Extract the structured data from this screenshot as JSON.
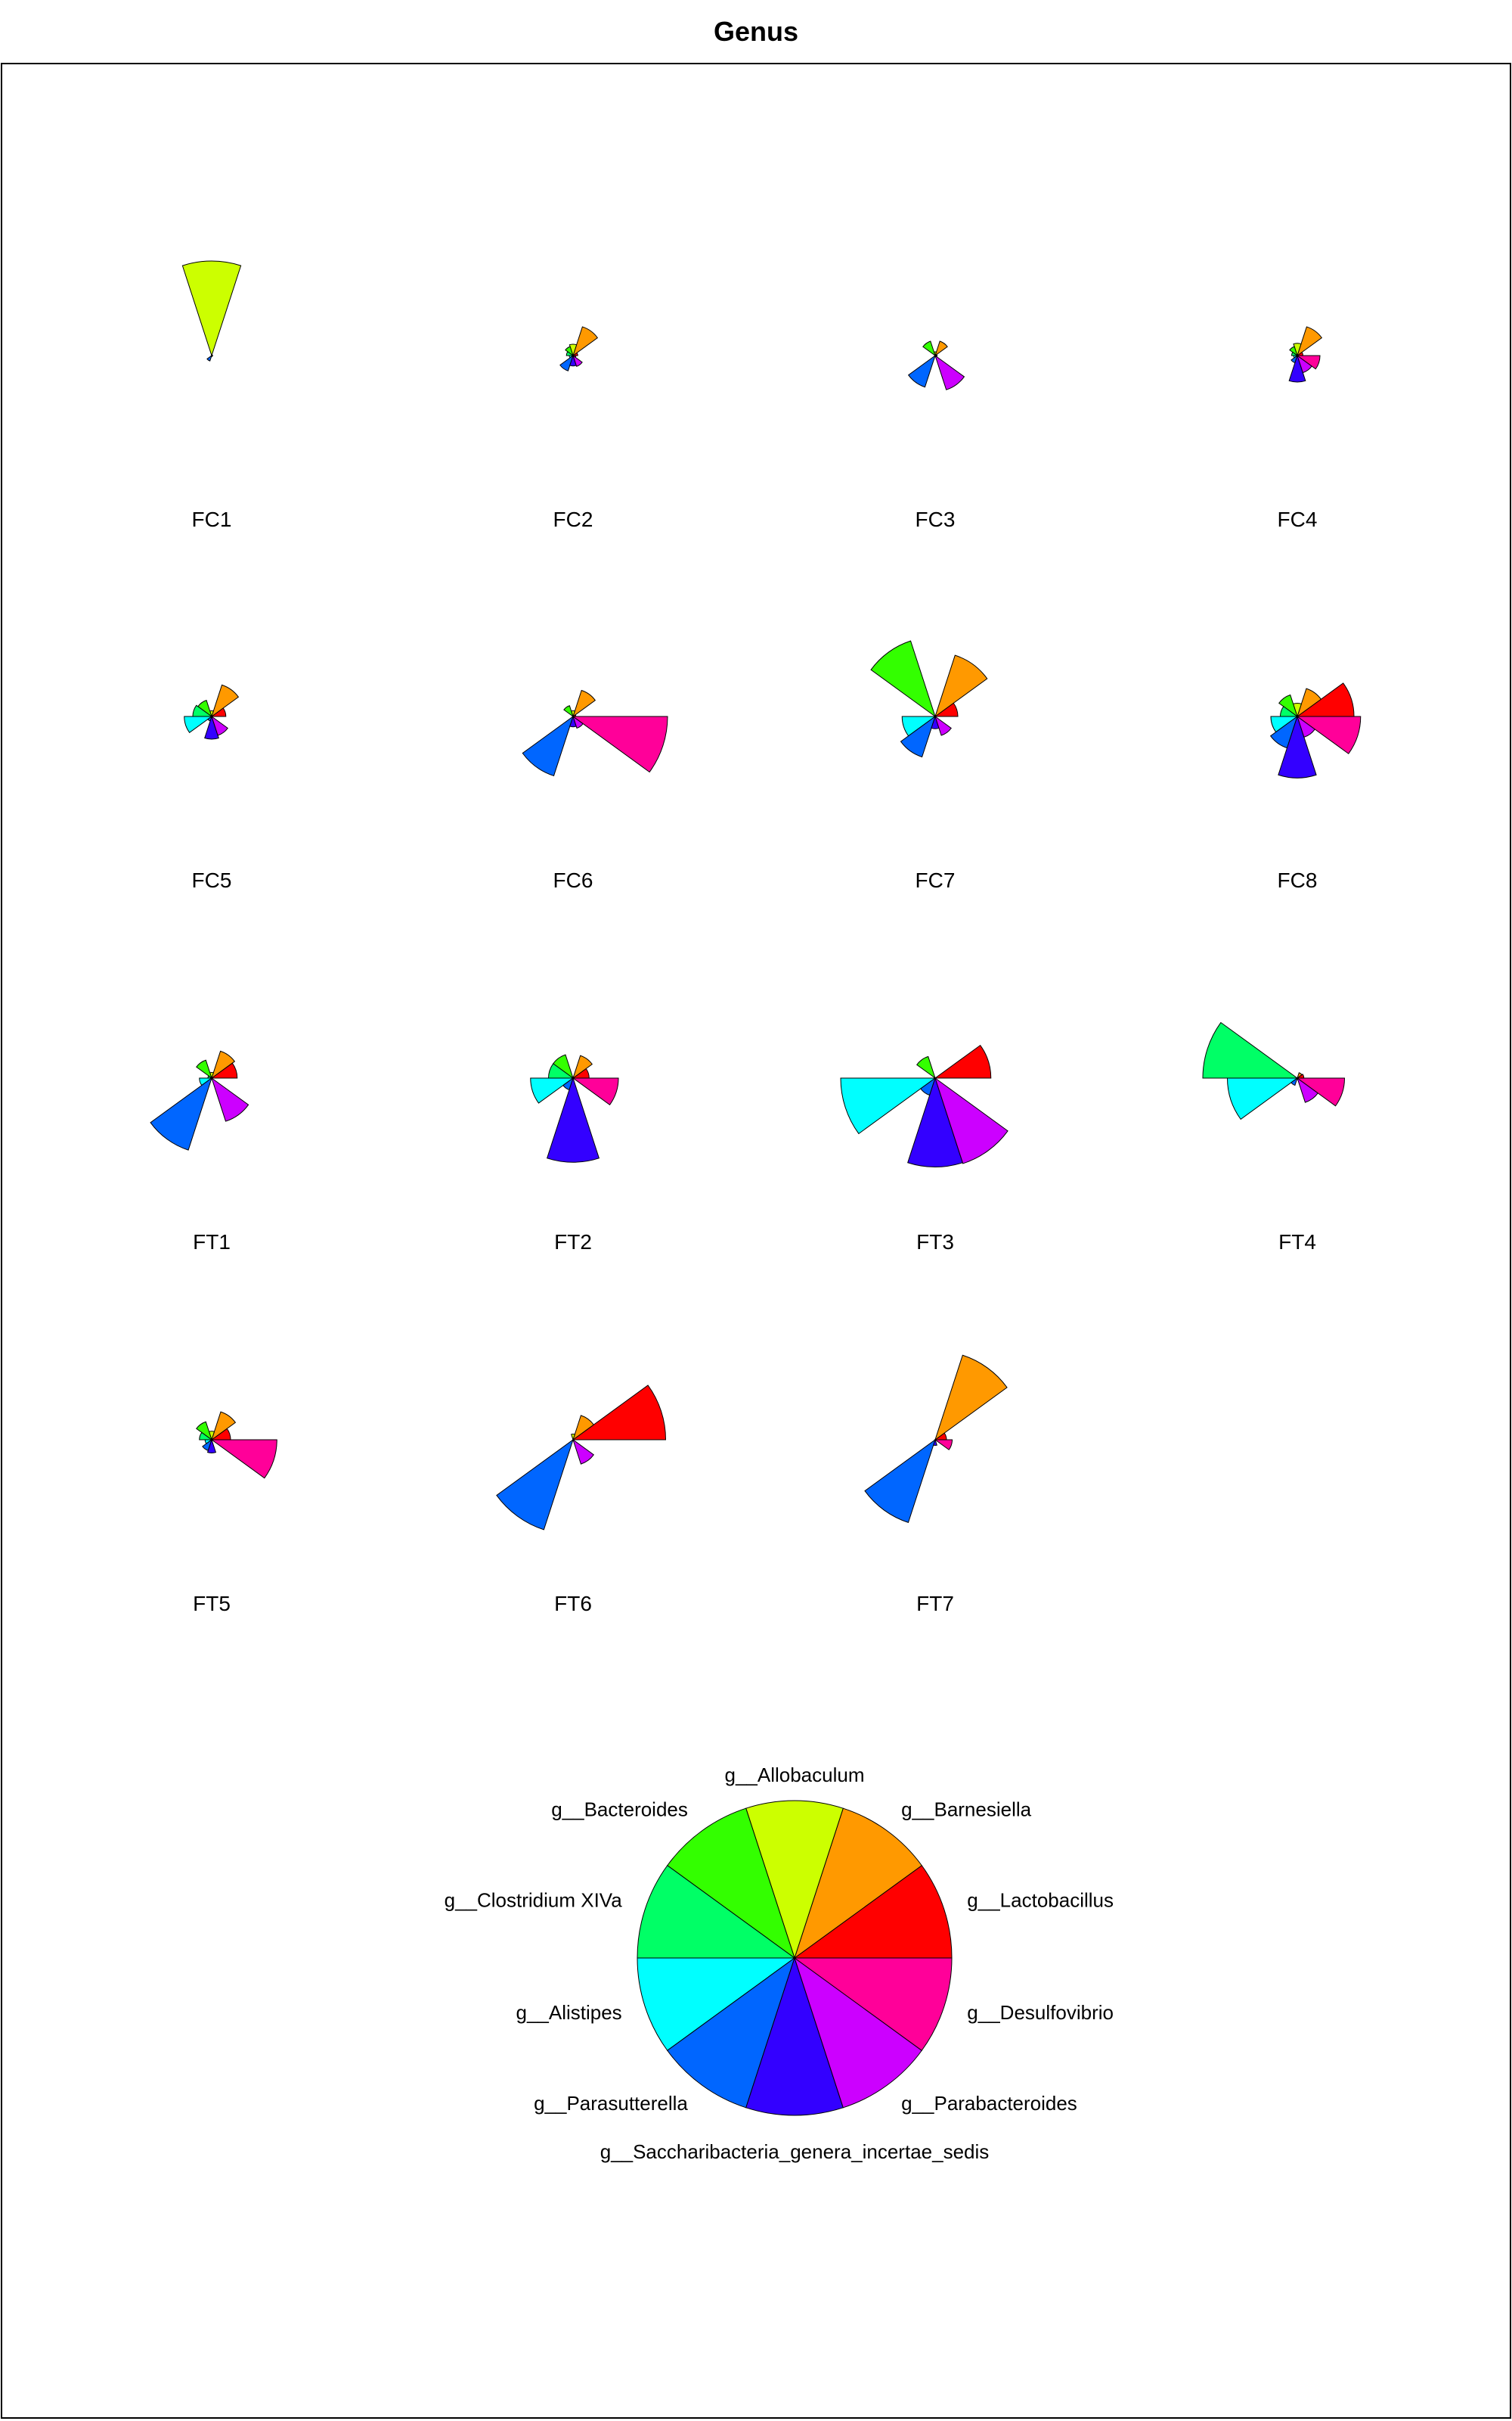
{
  "chart_data": {
    "type": "star",
    "title": "Genus",
    "genera": [
      {
        "name": "g__Lactobacillus",
        "color": "#ff0000"
      },
      {
        "name": "g__Barnesiella",
        "color": "#ff9900"
      },
      {
        "name": "g__Allobaculum",
        "color": "#ccff00"
      },
      {
        "name": "g__Bacteroides",
        "color": "#33ff00"
      },
      {
        "name": "g__Clostridium XIVa",
        "color": "#00ff66"
      },
      {
        "name": "g__Alistipes",
        "color": "#00ffff"
      },
      {
        "name": "g__Parasutterella",
        "color": "#0066ff"
      },
      {
        "name": "g__Saccharibacteria_genera_incertae_sedis",
        "color": "#3300ff"
      },
      {
        "name": "g__Parabacteroides",
        "color": "#cc00ff"
      },
      {
        "name": "g__Desulfovibrio",
        "color": "#ff0099"
      }
    ],
    "samples": [
      {
        "name": "FC1",
        "values": [
          0.01,
          0.0,
          1.0,
          0.0,
          0.0,
          0.0,
          0.06,
          0.0,
          0.01,
          0.0
        ]
      },
      {
        "name": "FC2",
        "values": [
          0.05,
          0.32,
          0.12,
          0.1,
          0.07,
          0.04,
          0.17,
          0.11,
          0.12,
          0.03
        ]
      },
      {
        "name": "FC3",
        "values": [
          0.02,
          0.16,
          0.04,
          0.16,
          0.0,
          0.0,
          0.35,
          0.0,
          0.38,
          0.02
        ]
      },
      {
        "name": "FC4",
        "values": [
          0.06,
          0.32,
          0.13,
          0.1,
          0.06,
          0.04,
          0.08,
          0.28,
          0.19,
          0.24
        ]
      },
      {
        "name": "FC5",
        "values": [
          0.15,
          0.35,
          0.06,
          0.18,
          0.2,
          0.29,
          0.05,
          0.24,
          0.21,
          0.0
        ]
      },
      {
        "name": "FC6",
        "values": [
          0.03,
          0.29,
          0.06,
          0.12,
          0.0,
          0.0,
          0.66,
          0.11,
          0.13,
          1.0
        ]
      },
      {
        "name": "FC7",
        "values": [
          0.24,
          0.68,
          0.0,
          0.84,
          0.0,
          0.35,
          0.45,
          0.13,
          0.21,
          0.0
        ]
      },
      {
        "name": "FC8",
        "values": [
          0.6,
          0.31,
          0.14,
          0.24,
          0.18,
          0.28,
          0.35,
          0.65,
          0.23,
          0.67
        ]
      },
      {
        "name": "FT1",
        "values": [
          0.27,
          0.3,
          0.06,
          0.2,
          0.04,
          0.13,
          0.8,
          0.0,
          0.48,
          0.0
        ]
      },
      {
        "name": "FT2",
        "values": [
          0.17,
          0.25,
          0.0,
          0.26,
          0.26,
          0.45,
          0.13,
          0.89,
          0.0,
          0.48
        ]
      },
      {
        "name": "FT3",
        "values": [
          0.59,
          0.0,
          0.0,
          0.24,
          0.0,
          1.0,
          0.19,
          0.94,
          0.95,
          0.0
        ]
      },
      {
        "name": "FT4",
        "values": [
          0.07,
          0.06,
          0.0,
          0.0,
          1.0,
          0.74,
          0.08,
          0.0,
          0.27,
          0.5
        ]
      },
      {
        "name": "FT5",
        "values": [
          0.2,
          0.31,
          0.09,
          0.2,
          0.13,
          0.07,
          0.12,
          0.14,
          0.0,
          0.69
        ]
      },
      {
        "name": "FT6",
        "values": [
          0.98,
          0.27,
          0.06,
          0.0,
          0.0,
          0.0,
          1.0,
          0.0,
          0.27,
          0.0
        ]
      },
      {
        "name": "FT7",
        "values": [
          0.12,
          0.94,
          0.0,
          0.0,
          0.0,
          0.0,
          0.92,
          0.06,
          0.0,
          0.18
        ]
      }
    ]
  }
}
